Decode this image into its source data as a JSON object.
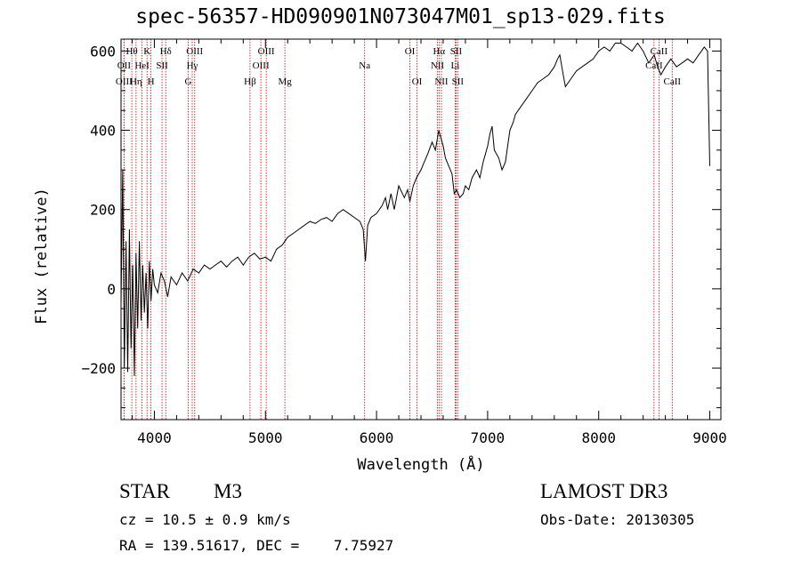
{
  "title": "spec-56357-HD090901N073047M01_sp13-029.fits",
  "chart_data": {
    "type": "line",
    "xlabel": "Wavelength (Å)",
    "ylabel": "Flux (relative)",
    "xlim": [
      3700,
      9100
    ],
    "ylim": [
      -330,
      630
    ],
    "xticks": [
      4000,
      5000,
      6000,
      7000,
      8000,
      9000
    ],
    "yticks": [
      -200,
      0,
      200,
      400,
      600
    ],
    "grid": false,
    "series": [
      {
        "x": [
          3700,
          3715,
          3730,
          3745,
          3760,
          3775,
          3790,
          3805,
          3820,
          3835,
          3850,
          3865,
          3880,
          3895,
          3910,
          3925,
          3940,
          3955,
          3970,
          3985,
          4000,
          4030,
          4060,
          4090,
          4120,
          4150,
          4200,
          4250,
          4300,
          4350,
          4400,
          4450,
          4500,
          4550,
          4600,
          4650,
          4700,
          4750,
          4800,
          4850,
          4900,
          4950,
          5000,
          5050,
          5100,
          5150,
          5200,
          5250,
          5300,
          5350,
          5400,
          5450,
          5500,
          5550,
          5600,
          5650,
          5700,
          5750,
          5800,
          5850,
          5880,
          5900,
          5920,
          5950,
          6000,
          6050,
          6080,
          6100,
          6130,
          6160,
          6200,
          6250,
          6280,
          6300,
          6330,
          6360,
          6400,
          6430,
          6460,
          6500,
          6530,
          6560,
          6580,
          6600,
          6620,
          6650,
          6680,
          6700,
          6720,
          6750,
          6780,
          6800,
          6830,
          6860,
          6900,
          6930,
          6960,
          7000,
          7020,
          7040,
          7060,
          7100,
          7130,
          7160,
          7200,
          7230,
          7250,
          7300,
          7350,
          7400,
          7450,
          7500,
          7550,
          7600,
          7630,
          7650,
          7680,
          7700,
          7750,
          7800,
          7850,
          7900,
          7950,
          8000,
          8050,
          8100,
          8150,
          8200,
          8250,
          8300,
          8350,
          8400,
          8450,
          8500,
          8530,
          8560,
          8600,
          8650,
          8700,
          8750,
          8800,
          8850,
          8900,
          8950,
          8980,
          9000
        ],
        "y": [
          -40,
          300,
          -200,
          120,
          -210,
          150,
          -150,
          60,
          -220,
          90,
          -100,
          120,
          -80,
          60,
          -60,
          40,
          -100,
          70,
          -30,
          50,
          10,
          -10,
          40,
          20,
          -20,
          30,
          10,
          40,
          20,
          50,
          40,
          60,
          50,
          60,
          70,
          55,
          70,
          80,
          60,
          80,
          90,
          75,
          80,
          70,
          100,
          110,
          130,
          140,
          150,
          160,
          170,
          165,
          175,
          180,
          170,
          190,
          200,
          190,
          180,
          170,
          150,
          70,
          160,
          180,
          190,
          210,
          230,
          200,
          240,
          200,
          260,
          230,
          250,
          220,
          260,
          280,
          300,
          320,
          340,
          370,
          350,
          400,
          380,
          360,
          330,
          310,
          290,
          240,
          250,
          230,
          240,
          260,
          250,
          280,
          300,
          280,
          320,
          360,
          390,
          410,
          350,
          330,
          300,
          320,
          400,
          420,
          440,
          460,
          480,
          500,
          520,
          530,
          540,
          560,
          580,
          590,
          540,
          510,
          530,
          550,
          560,
          570,
          580,
          600,
          610,
          600,
          620,
          620,
          610,
          600,
          620,
          600,
          570,
          590,
          560,
          540,
          560,
          580,
          560,
          570,
          580,
          570,
          590,
          610,
          600,
          310
        ]
      }
    ],
    "line_markers": [
      {
        "label": "Hθ",
        "wl": 3797,
        "row": 0
      },
      {
        "label": "OII",
        "wl": 3727,
        "row": 1
      },
      {
        "label": "OIII",
        "wl": 3727,
        "row": 2
      },
      {
        "label": "K",
        "wl": 3934,
        "row": 0
      },
      {
        "label": "HeI",
        "wl": 3889,
        "row": 1
      },
      {
        "label": "Hη",
        "wl": 3835,
        "row": 2
      },
      {
        "label": "H",
        "wl": 3969,
        "row": 2
      },
      {
        "label": "SII",
        "wl": 4069,
        "row": 1
      },
      {
        "label": "Hδ",
        "wl": 4102,
        "row": 0
      },
      {
        "label": "OIII",
        "wl": 4363,
        "row": 0
      },
      {
        "label": "Hγ",
        "wl": 4341,
        "row": 1
      },
      {
        "label": "G",
        "wl": 4305,
        "row": 2
      },
      {
        "label": "Hβ",
        "wl": 4861,
        "row": 2
      },
      {
        "label": "OIII",
        "wl": 5007,
        "row": 0
      },
      {
        "label": "OIII",
        "wl": 4959,
        "row": 1
      },
      {
        "label": "Mg",
        "wl": 5175,
        "row": 2
      },
      {
        "label": "Na",
        "wl": 5893,
        "row": 1
      },
      {
        "label": "OI",
        "wl": 6300,
        "row": 0
      },
      {
        "label": "OI",
        "wl": 6364,
        "row": 2
      },
      {
        "label": "Hα",
        "wl": 6563,
        "row": 0
      },
      {
        "label": "NII",
        "wl": 6548,
        "row": 1
      },
      {
        "label": "NII",
        "wl": 6584,
        "row": 2
      },
      {
        "label": "SII",
        "wl": 6716,
        "row": 0
      },
      {
        "label": "Li",
        "wl": 6708,
        "row": 1
      },
      {
        "label": "SII",
        "wl": 6731,
        "row": 2
      },
      {
        "label": "CaII",
        "wl": 8542,
        "row": 0
      },
      {
        "label": "CaII",
        "wl": 8498,
        "row": 1
      },
      {
        "label": "CaII",
        "wl": 8662,
        "row": 2
      }
    ],
    "marker_color": "#cc0000"
  },
  "footer": {
    "object_class": "STAR",
    "subclass": "M3",
    "survey": "LAMOST DR3",
    "cz": "cz = 10.5 ± 0.9 km/s",
    "obs_date": "Obs-Date: 20130305",
    "radec": "RA = 139.51617, DEC =    7.75927"
  }
}
